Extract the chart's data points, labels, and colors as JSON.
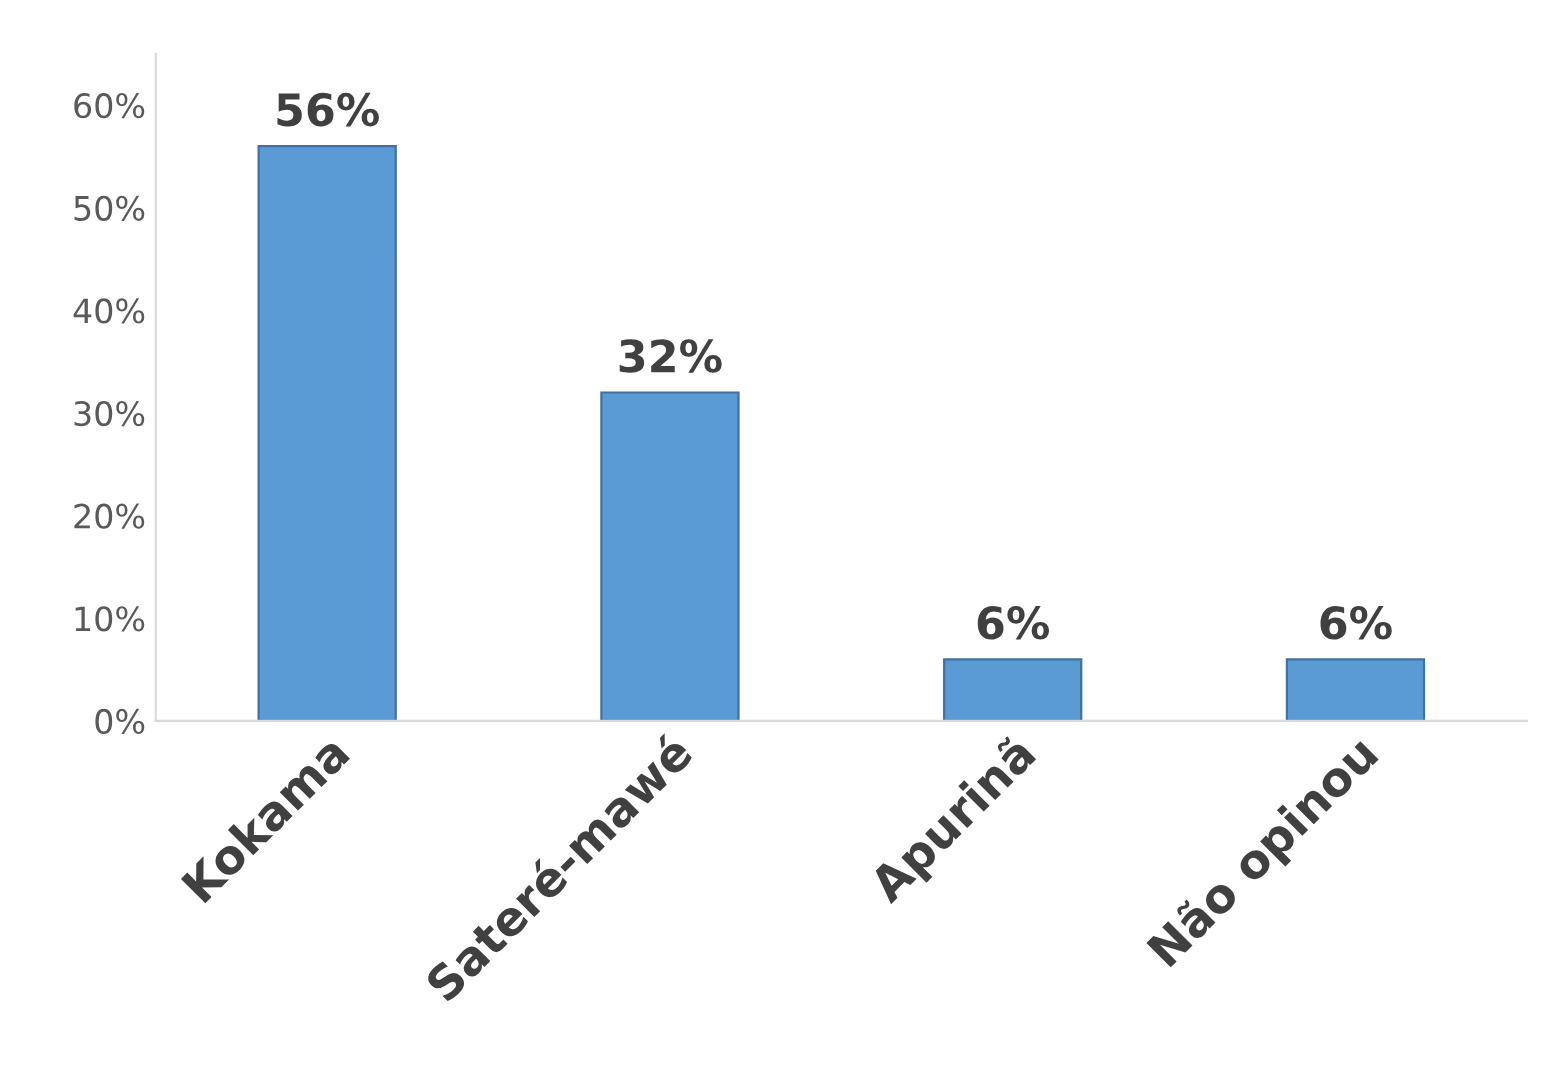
{
  "chart_data": {
    "type": "bar",
    "categories": [
      "Kokama",
      "Sateré-mawé",
      "Apurinã",
      "Não opinou"
    ],
    "values": [
      56,
      32,
      6,
      6
    ],
    "value_labels": [
      "56%",
      "32%",
      "6%",
      "6%"
    ],
    "color": "#5b9bd5",
    "ylim": [
      0,
      65
    ],
    "yticks": [
      {
        "value": 0,
        "label": "0%"
      },
      {
        "value": 10,
        "label": "10%"
      },
      {
        "value": 20,
        "label": "20%"
      },
      {
        "value": 30,
        "label": "30%"
      },
      {
        "value": 40,
        "label": "40%"
      },
      {
        "value": 50,
        "label": "50%"
      },
      {
        "value": 60,
        "label": "60%"
      }
    ],
    "grid": false,
    "legend": false
  }
}
